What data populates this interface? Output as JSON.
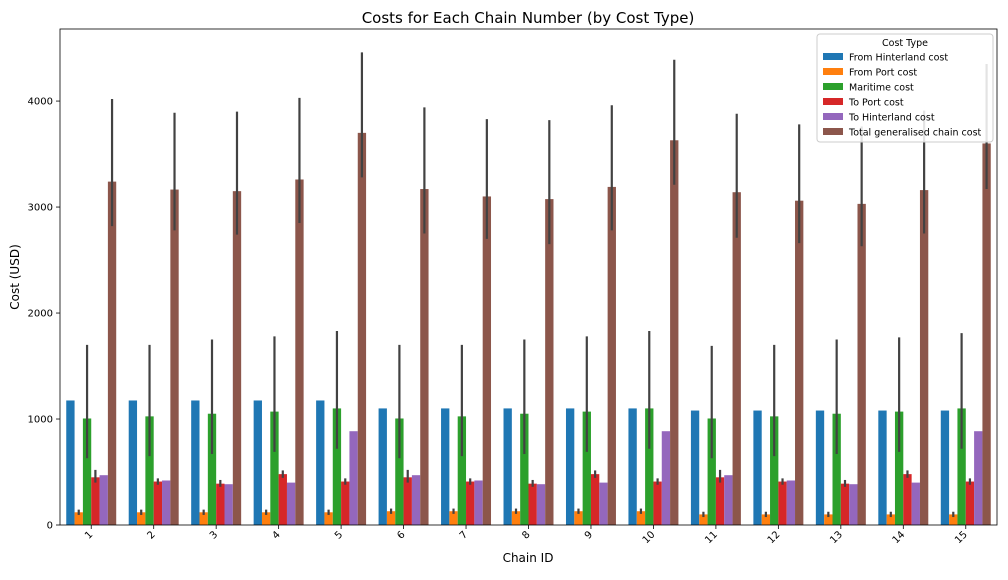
{
  "chart_data": {
    "type": "bar",
    "title": "Costs for Each Chain Number (by Cost Type)",
    "xlabel": "Chain ID",
    "ylabel": "Cost (USD)",
    "ylim": [
      0,
      4680
    ],
    "yticks": [
      0,
      1000,
      2000,
      3000,
      4000
    ],
    "grid": false,
    "legend": {
      "title": "Cost Type",
      "placement": "top-right"
    },
    "categories": [
      "1",
      "2",
      "3",
      "4",
      "5",
      "6",
      "7",
      "8",
      "9",
      "10",
      "11",
      "12",
      "13",
      "14",
      "15"
    ],
    "series": [
      {
        "name": "From Hinterland cost",
        "color": "#1f77b4",
        "values": [
          1175,
          1175,
          1175,
          1175,
          1175,
          1100,
          1100,
          1100,
          1100,
          1100,
          1080,
          1080,
          1080,
          1080,
          1080
        ],
        "ci_low": null,
        "ci_high": null
      },
      {
        "name": "From Port cost",
        "color": "#ff7f0e",
        "values": [
          120,
          120,
          120,
          120,
          120,
          130,
          130,
          130,
          130,
          130,
          100,
          100,
          100,
          100,
          100
        ],
        "ci_low": [
          95,
          95,
          95,
          95,
          95,
          105,
          105,
          105,
          105,
          105,
          75,
          75,
          75,
          75,
          75
        ],
        "ci_high": [
          145,
          145,
          145,
          145,
          145,
          155,
          155,
          155,
          155,
          155,
          125,
          125,
          125,
          125,
          125
        ]
      },
      {
        "name": "Maritime cost",
        "color": "#2ca02c",
        "values": [
          1005,
          1025,
          1050,
          1070,
          1100,
          1005,
          1025,
          1050,
          1070,
          1100,
          1005,
          1025,
          1050,
          1070,
          1100
        ],
        "ci_low": [
          630,
          650,
          670,
          690,
          720,
          630,
          650,
          670,
          690,
          720,
          630,
          650,
          670,
          690,
          720
        ],
        "ci_high": [
          1700,
          1700,
          1750,
          1780,
          1830,
          1700,
          1700,
          1750,
          1780,
          1830,
          1690,
          1700,
          1750,
          1770,
          1810
        ]
      },
      {
        "name": "To Port cost",
        "color": "#d62728",
        "values": [
          450,
          410,
          390,
          480,
          410,
          450,
          410,
          390,
          480,
          410,
          450,
          410,
          390,
          480,
          410
        ],
        "ci_low": [
          400,
          380,
          360,
          445,
          380,
          400,
          380,
          360,
          445,
          380,
          400,
          380,
          360,
          445,
          380
        ],
        "ci_high": [
          520,
          440,
          425,
          515,
          440,
          520,
          440,
          425,
          515,
          440,
          520,
          440,
          425,
          515,
          440
        ]
      },
      {
        "name": "To Hinterland cost",
        "color": "#9467bd",
        "values": [
          470,
          420,
          385,
          400,
          885,
          470,
          420,
          385,
          400,
          885,
          470,
          420,
          385,
          400,
          885
        ],
        "ci_low": null,
        "ci_high": null
      },
      {
        "name": "Total generalised chain cost",
        "color": "#8c564b",
        "values": [
          3240,
          3165,
          3150,
          3260,
          3700,
          3170,
          3100,
          3075,
          3190,
          3630,
          3140,
          3060,
          3030,
          3160,
          3600
        ],
        "ci_low": [
          2820,
          2780,
          2740,
          2850,
          3280,
          2750,
          2700,
          2650,
          2780,
          3210,
          2710,
          2660,
          2630,
          2750,
          3170
        ],
        "ci_high": [
          4020,
          3890,
          3900,
          4030,
          4460,
          3940,
          3830,
          3820,
          3960,
          4390,
          3880,
          3780,
          3760,
          3910,
          4350
        ]
      }
    ]
  }
}
